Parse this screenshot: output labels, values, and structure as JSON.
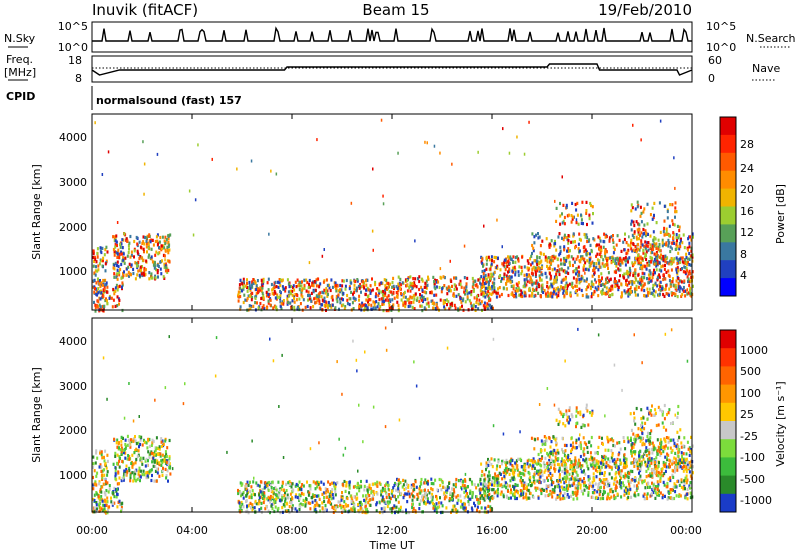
{
  "header": {
    "station": "Inuvik (fitACF)",
    "beam": "Beam 15",
    "date": "19/Feb/2010"
  },
  "status_panels": {
    "nsky_label": "N.Sky",
    "nsky_ticks": [
      "10^5",
      "10^0"
    ],
    "nsearch_label": "N.Search",
    "nsearch_ticks": [
      "10^5",
      "10^0"
    ],
    "freq_label_1": "Freq.",
    "freq_label_2": "[MHz]",
    "freq_ticks": [
      "18",
      "8"
    ],
    "nave_label": "Nave",
    "nave_ticks": [
      "60",
      "0"
    ],
    "cpid_label": "CPID",
    "cpid_value": "normalsound (fast) 157"
  },
  "chart_data": [
    {
      "type": "heatmap",
      "name": "power-panel",
      "ylabel": "Slant Range [km]",
      "y_ticks": [
        "4000",
        "3000",
        "2000",
        "1000"
      ],
      "y_tick_values": [
        4000,
        3000,
        2000,
        1000
      ],
      "ylim": [
        180,
        4500
      ],
      "x_tick_values": [
        0,
        4,
        8,
        12,
        16,
        20,
        24
      ],
      "xlim": [
        0,
        24
      ],
      "colorbar_label": "Power [dB]",
      "colorbar_ticks": [
        "28",
        "24",
        "20",
        "16",
        "12",
        "8",
        "4"
      ],
      "colorbar_colors": [
        "#0000ff",
        "#2040c0",
        "#3a78a0",
        "#58a058",
        "#9ccd30",
        "#f0b400",
        "#ff8c00",
        "#ff5a00",
        "#ff2400",
        "#e00000"
      ]
    },
    {
      "type": "heatmap",
      "name": "velocity-panel",
      "ylabel": "Slant Range [km]",
      "y_ticks": [
        "4000",
        "3000",
        "2000",
        "1000"
      ],
      "y_tick_values": [
        4000,
        3000,
        2000,
        1000
      ],
      "ylim": [
        180,
        4500
      ],
      "xlabel": "Time UT",
      "x_ticks": [
        "00:00",
        "04:00",
        "08:00",
        "12:00",
        "16:00",
        "20:00",
        "00:00"
      ],
      "x_tick_values": [
        0,
        4,
        8,
        12,
        16,
        20,
        24
      ],
      "xlim": [
        0,
        24
      ],
      "colorbar_label": "Velocity [m s⁻¹]",
      "colorbar_ticks": [
        "1000",
        "500",
        "100",
        "25",
        "-25",
        "-100",
        "-500",
        "-1000"
      ],
      "colorbar_colors": [
        "#1a3cc8",
        "#2a8a2a",
        "#3cbc3c",
        "#7cdc3c",
        "#c8c8c8",
        "#ffc800",
        "#ff9600",
        "#ff6400",
        "#ff3200",
        "#e00000"
      ]
    }
  ],
  "colors": {
    "power_scatter": [
      "#e00000",
      "#ff2400",
      "#ff5a00",
      "#ff8c00",
      "#f0b400",
      "#9ccd30",
      "#58a058",
      "#3a78a0",
      "#2040c0"
    ],
    "velocity_scatter": [
      "#ff9600",
      "#ff6400",
      "#ffc800",
      "#3cbc3c",
      "#2a8a2a",
      "#c8c8c8",
      "#7cdc3c",
      "#1a3cc8"
    ]
  }
}
